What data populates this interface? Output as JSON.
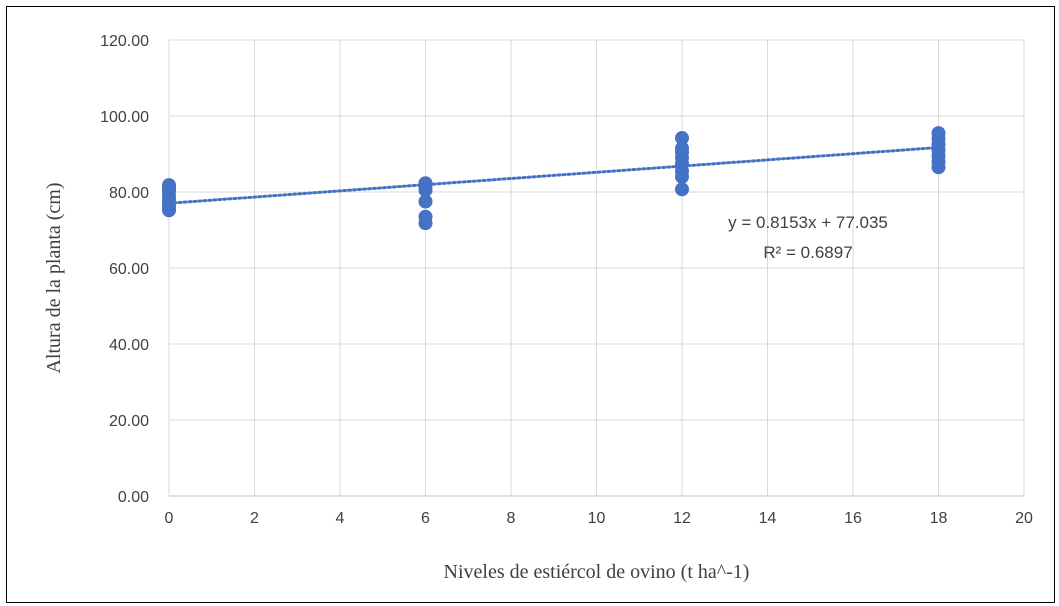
{
  "chart_data": {
    "type": "scatter",
    "title": "",
    "xlabel": "Niveles de estiércol de ovino (t ha^-1)",
    "ylabel": "Altura de la planta (cm)",
    "xlim": [
      0,
      20
    ],
    "ylim": [
      0,
      120
    ],
    "x_ticks": [
      0,
      2,
      4,
      6,
      8,
      10,
      12,
      14,
      16,
      18,
      20
    ],
    "x_tick_labels": [
      "0",
      "2",
      "4",
      "6",
      "8",
      "10",
      "12",
      "14",
      "16",
      "18",
      "20"
    ],
    "y_ticks": [
      0,
      20,
      40,
      60,
      80,
      100,
      120
    ],
    "y_tick_labels": [
      "0.00",
      "20.00",
      "40.00",
      "60.00",
      "80.00",
      "100.00",
      "120.00"
    ],
    "grid": true,
    "point_color": "#4472C4",
    "trendline_color": "#4472C4",
    "series": [
      {
        "x": [
          0,
          0,
          0,
          0,
          0,
          0,
          0,
          0,
          6,
          6,
          6,
          6,
          6,
          6,
          12,
          12,
          12,
          12,
          12,
          12,
          12,
          12,
          18,
          18,
          18,
          18,
          18,
          18,
          18
        ],
        "y": [
          75.2,
          76.0,
          77.0,
          78.0,
          79.0,
          80.2,
          81.0,
          81.8,
          71.8,
          73.5,
          77.5,
          80.5,
          81.5,
          82.3,
          80.7,
          84.0,
          85.5,
          87.5,
          89.0,
          90.5,
          91.5,
          94.2,
          86.5,
          88.0,
          89.5,
          91.0,
          92.5,
          94.0,
          95.5
        ]
      }
    ],
    "trendline": {
      "type": "linear",
      "slope": 0.8153,
      "intercept": 77.035,
      "x_range": [
        0,
        18
      ],
      "equation_label": "y = 0.8153x + 77.035",
      "r2_label": "R² = 0.6897"
    }
  }
}
